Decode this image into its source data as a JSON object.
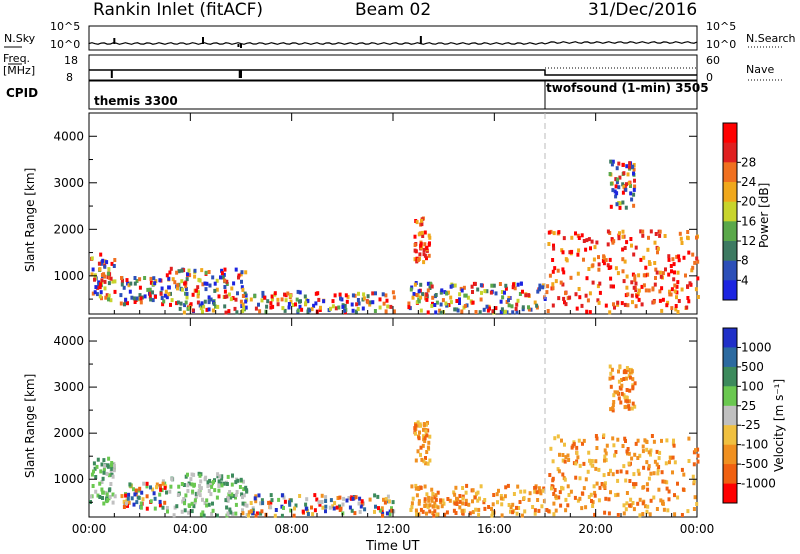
{
  "header": {
    "station": "Rankin Inlet (fitACF)",
    "beam": "Beam 02",
    "date": "31/Dec/2016"
  },
  "top_panels": {
    "nsky_label": "N.Sky",
    "nsky_ticks": [
      "10^5",
      "10^0"
    ],
    "nsearch_label": "N.Search",
    "nsearch_ticks": [
      "10^5",
      "10^0"
    ],
    "freq_label_line1": "Freq.",
    "freq_label_line2": "[MHz]",
    "freq_ticks": [
      "18",
      "8"
    ],
    "nave_label": "Nave",
    "nave_ticks": [
      "60",
      "0"
    ],
    "cpid_label": "CPID",
    "cpid_segments": [
      "themis 3300",
      "twofsound (1-min) 3505"
    ]
  },
  "chart_data": [
    {
      "type": "heatmap",
      "name": "power",
      "xlabel": "",
      "ylabel": "Slant Range [km]",
      "x_range_hours": [
        0,
        24
      ],
      "ylim": [
        180,
        4500
      ],
      "yticks": [
        "1000",
        "2000",
        "3000",
        "4000"
      ],
      "colorbar_label": "Power [dB]",
      "colorbar_ticks": [
        "4",
        "8",
        "12",
        "16",
        "20",
        "24",
        "28"
      ],
      "colorbar_colors": [
        "#1c24e0",
        "#2c4fb8",
        "#3d7a62",
        "#5aa84a",
        "#c8d42c",
        "#f0a81c",
        "#f07020",
        "#e02020",
        "#ff0000"
      ],
      "mode_change_hour": 18,
      "scatter_regions": [
        {
          "x": [
            0,
            1
          ],
          "y": [
            500,
            1500
          ]
        },
        {
          "x": [
            1.2,
            3
          ],
          "y": [
            400,
            1000
          ]
        },
        {
          "x": [
            3,
            6.2
          ],
          "y": [
            250,
            1200
          ]
        },
        {
          "x": [
            6,
            12
          ],
          "y": [
            250,
            700
          ]
        },
        {
          "x": [
            12.8,
            13.4
          ],
          "y": [
            1300,
            2300
          ]
        },
        {
          "x": [
            12.5,
            18
          ],
          "y": [
            250,
            900
          ]
        },
        {
          "x": [
            18,
            24
          ],
          "y": [
            250,
            2000
          ]
        },
        {
          "x": [
            20.5,
            21.5
          ],
          "y": [
            2500,
            3500
          ]
        }
      ]
    },
    {
      "type": "heatmap",
      "name": "velocity",
      "xlabel": "Time UT",
      "ylabel": "Slant Range [km]",
      "x_range_hours": [
        0,
        24
      ],
      "ylim": [
        180,
        4500
      ],
      "yticks": [
        "1000",
        "2000",
        "3000",
        "4000"
      ],
      "xticks": [
        "00:00",
        "04:00",
        "08:00",
        "12:00",
        "16:00",
        "20:00",
        "00:00"
      ],
      "colorbar_label": "Velocity [m s⁻¹]",
      "colorbar_ticks": [
        "1000",
        "500",
        "100",
        "25",
        "-25",
        "-100",
        "-500",
        "-1000"
      ],
      "colorbar_colors": [
        "#2030c8",
        "#2c6aa0",
        "#3c8a5c",
        "#6ac850",
        "#c0c0c0",
        "#f0c040",
        "#f09020",
        "#f06010",
        "#ff0000"
      ],
      "mode_change_hour": 18
    }
  ]
}
